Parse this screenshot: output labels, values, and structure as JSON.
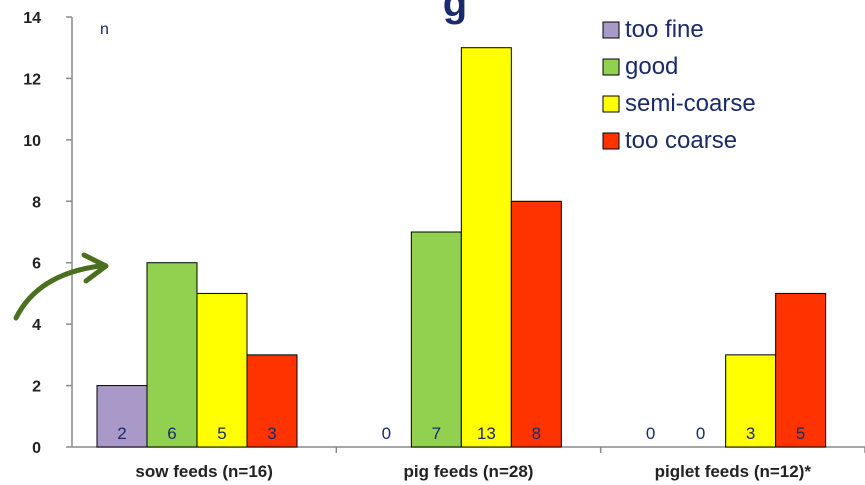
{
  "chart_data": {
    "type": "bar",
    "title_fragment": "g",
    "unit_label": "n",
    "categories": [
      "sow feeds (n=16)",
      "pig feeds (n=28)",
      "piglet feeds (n=12)*"
    ],
    "series": [
      {
        "name": "too fine",
        "color": "#a899c8",
        "values": [
          2,
          0,
          0
        ]
      },
      {
        "name": "good",
        "color": "#92d050",
        "values": [
          6,
          7,
          0
        ]
      },
      {
        "name": "semi-coarse",
        "color": "#ffff00",
        "values": [
          5,
          13,
          3
        ]
      },
      {
        "name": "too coarse",
        "color": "#ff3300",
        "values": [
          3,
          8,
          5
        ]
      }
    ],
    "ylim": [
      0,
      14
    ],
    "yticks": [
      0,
      2,
      4,
      6,
      8,
      10,
      12,
      14
    ],
    "grid": false,
    "legend_position": "top-right",
    "arrow_color": "#4a6f1e"
  }
}
